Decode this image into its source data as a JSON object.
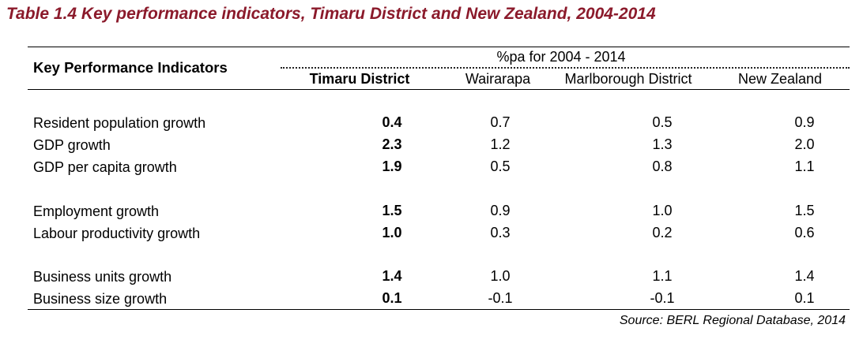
{
  "title": "Table 1.4 Key performance indicators, Timaru District and New Zealand, 2004-2014",
  "title_color": "#8b1a2b",
  "table": {
    "row_header": "Key Performance Indicators",
    "span_header": "%pa for 2004 - 2014",
    "columns": [
      "Timaru District",
      "Wairarapa",
      "Marlborough District",
      "New Zealand"
    ],
    "rows": [
      {
        "label": "Resident population growth",
        "values": [
          "0.4",
          "0.7",
          "0.5",
          "0.9"
        ]
      },
      {
        "label": "GDP growth",
        "values": [
          "2.3",
          "1.2",
          "1.3",
          "2.0"
        ]
      },
      {
        "label": "GDP per capita growth",
        "values": [
          "1.9",
          "0.5",
          "0.8",
          "1.1"
        ]
      },
      {
        "label": "Employment growth",
        "values": [
          "1.5",
          "0.9",
          "1.0",
          "1.5"
        ]
      },
      {
        "label": "Labour productivity growth",
        "values": [
          "1.0",
          "0.3",
          "0.2",
          "0.6"
        ]
      },
      {
        "label": "Business units growth",
        "values": [
          "1.4",
          "1.0",
          "1.1",
          "1.4"
        ]
      },
      {
        "label": "Business size growth",
        "values": [
          "0.1",
          "-0.1",
          "-0.1",
          "0.1"
        ]
      }
    ]
  },
  "source": "Source: BERL Regional Database, 2014"
}
